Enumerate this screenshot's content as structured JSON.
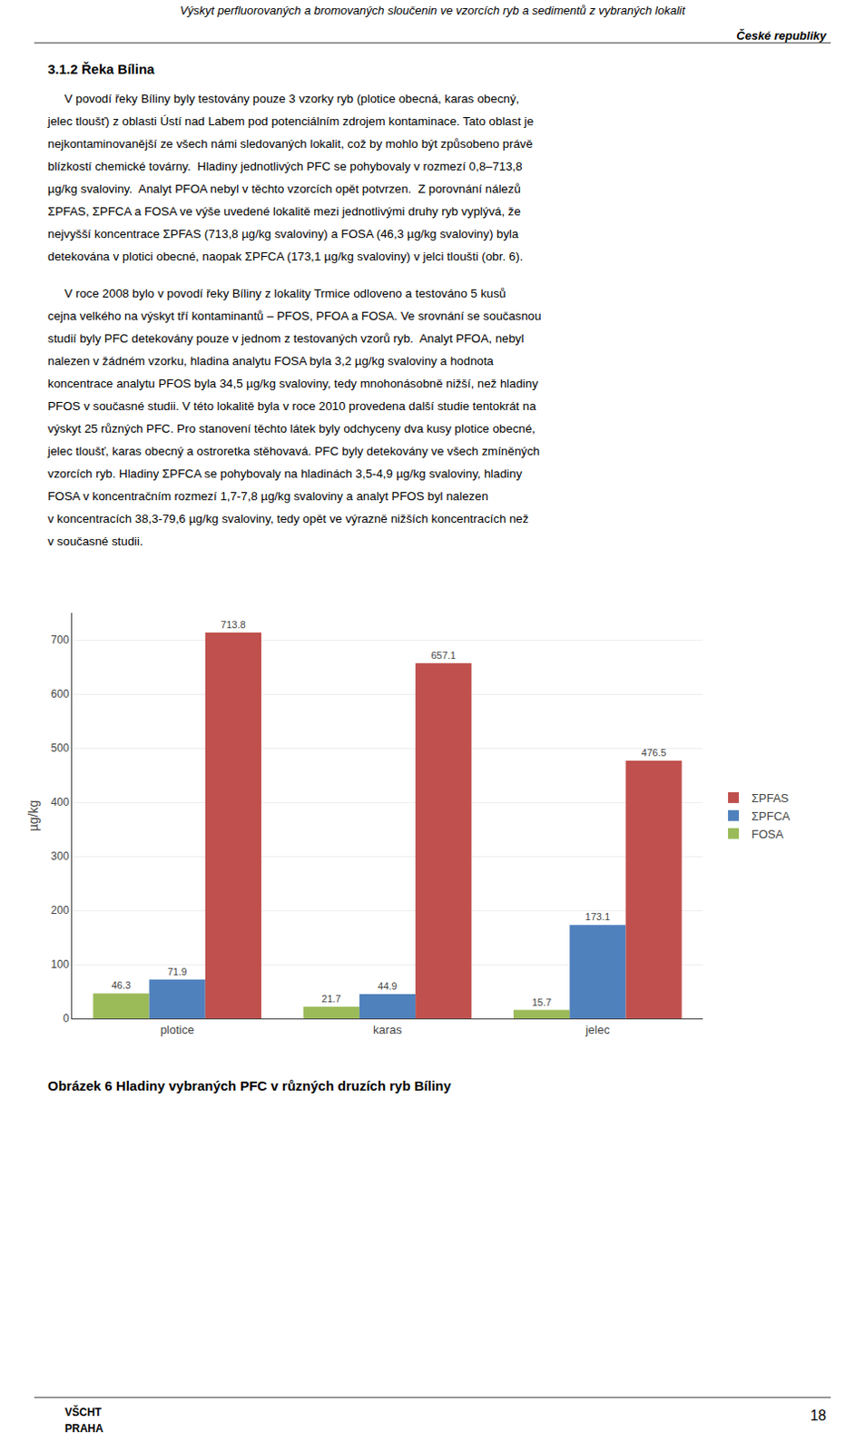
{
  "chart_data": {
    "type": "bar",
    "title": "Obrázek 6 Hladiny vybraných PFC v různých druzích ryb Bíliny",
    "categories": [
      "plotice",
      "karas",
      "jelec"
    ],
    "series": [
      {
        "name": "ΣPFAS",
        "color": "#C0504D",
        "values": [
          713.8,
          657.1,
          476.5
        ]
      },
      {
        "name": "ΣPFCA",
        "color": "#4F81BD",
        "values": [
          71.9,
          44.9,
          173.1
        ]
      },
      {
        "name": "FOSA",
        "color": "#9BBB59",
        "values": [
          46.3,
          21.7,
          15.7
        ]
      }
    ],
    "ylabel": "µg/kg",
    "ylim": [
      0,
      750
    ],
    "yticks": [
      0,
      100,
      200,
      300,
      400,
      500,
      600,
      700
    ],
    "grid": true,
    "legend": "right",
    "data_labels": true,
    "annotations": [
      "Výskyt perfluorovaných a bromovaných sloučenin ve vzorcích ryb a sedimentů z vybraných lokalit",
      "České republiky",
      "3.1.2 Řeka Bílina",
      "     V povodí řeky Bíliny byly testovány pouze 3 vzorky ryb (plotice obecná, karas obecný,\njelec tloušť) z oblasti Ústí nad Labem pod potenciálním zdrojem kontaminace. Tato oblast je\nnejkontaminovanější ze všech námi sledovaných lokalit, což by mohlo být způsobeno právě\nblízkostí chemické továrny.  Hladiny jednotlivých PFC se pohybovaly v rozmezí 0,8–713,8\nµg/kg svaloviny.  Analyt PFOA nebyl v těchto vzorcích opět potvrzen.  Z porovnání nálezů\nΣPFAS, ΣPFCA a FOSA ve výše uvedené lokalitě mezi jednotlivými druhy ryb vyplývá, že\nnejvyšší koncentrace ΣPFAS (713,8 µg/kg svaloviny) a FOSA (46,3 µg/kg svaloviny) byla\ndetekována v plotici obecné, naopak ΣPFCA (173,1 µg/kg svaloviny) v jelci tloušti (obr. 6).",
      "     V roce 2008 bylo v povodí řeky Bíliny z lokality Trmice odloveno a testováno 5 kusů\ncejna velkého na výskyt tří kontaminantů – PFOS, PFOA a FOSA. Ve srovnání se současnou\nstudií byly PFC detekovány pouze v jednom z testovaných vzorů ryb.  Analyt PFOA, nebyl\nnalezen v žádném vzorku, hladina analytu FOSA byla 3,2 µg/kg svaloviny a hodnota\nkoncentrace analytu PFOS byla 34,5 µg/kg svaloviny, tedy mnohonásobně nižší, než hladiny\nPFOS v současné studii. V této lokalitě byla v roce 2010 provedena další studie tentokrát na\nvýskyt 25 různých PFC. Pro stanovení těchto látek byly odchyceny dva kusy plotice obecné,\njelec tloušť, karas obecný a ostroretka stěhovavá. PFC byly detekovány ve všech zmíněných\nvzorcích ryb. Hladiny ΣPFCA se pohybovaly na hladinách 3,5-4,9 µg/kg svaloviny, hladiny\nFOSA v koncentračním rozmezí 1,7-7,8 µg/kg svaloviny a analyt PFOS byl nalezen\nv koncentracích 38,3-79,6 µg/kg svaloviny, tedy opět ve výrazně nižších koncentracích než\nv současné studii.",
      "VŠCHT",
      "PRAHA",
      "18"
    ]
  }
}
